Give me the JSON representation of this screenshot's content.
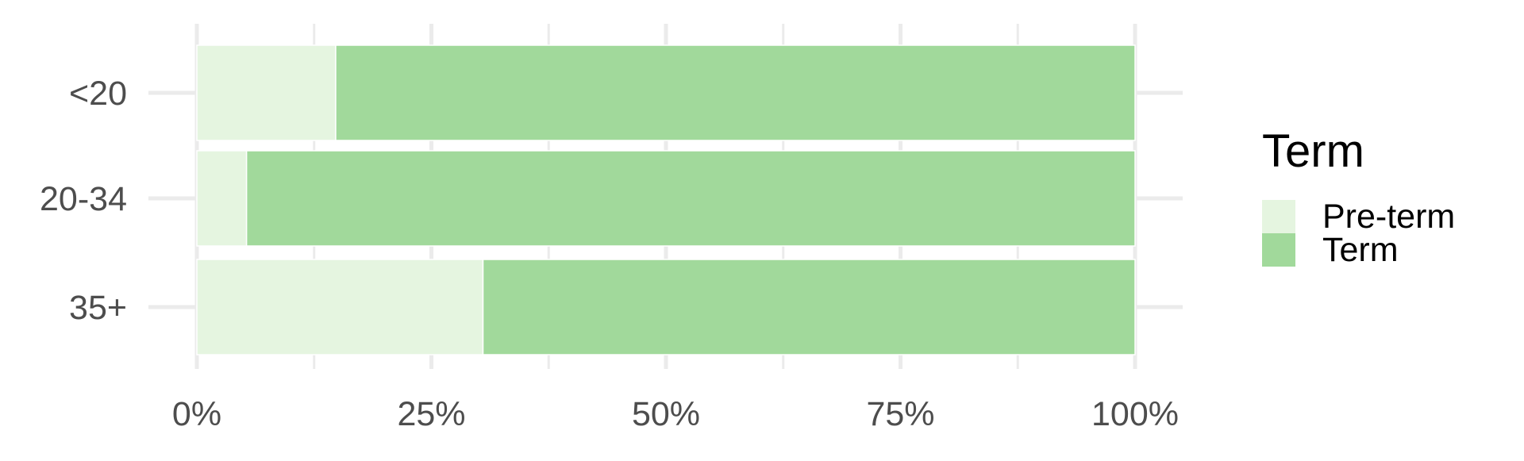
{
  "chart_data": {
    "type": "bar",
    "orientation": "horizontal",
    "stacked": true,
    "normalized": true,
    "categories": [
      "<20",
      "20-34",
      "35+"
    ],
    "series": [
      {
        "name": "Pre-term",
        "color": "#e5f5e0",
        "values": [
          0.148,
          0.053,
          0.305
        ]
      },
      {
        "name": "Term",
        "color": "#a1d99b",
        "values": [
          0.852,
          0.947,
          0.695
        ]
      }
    ],
    "xlim": [
      0,
      1
    ],
    "x_ticks": [
      0,
      0.25,
      0.5,
      0.75,
      1
    ],
    "x_tick_labels": [
      "0%",
      "25%",
      "50%",
      "75%",
      "100%"
    ],
    "grid": true,
    "legend": {
      "title": "Term",
      "position": "right",
      "entries": [
        "Pre-term",
        "Term"
      ]
    },
    "title": "",
    "xlabel": "",
    "ylabel": ""
  }
}
